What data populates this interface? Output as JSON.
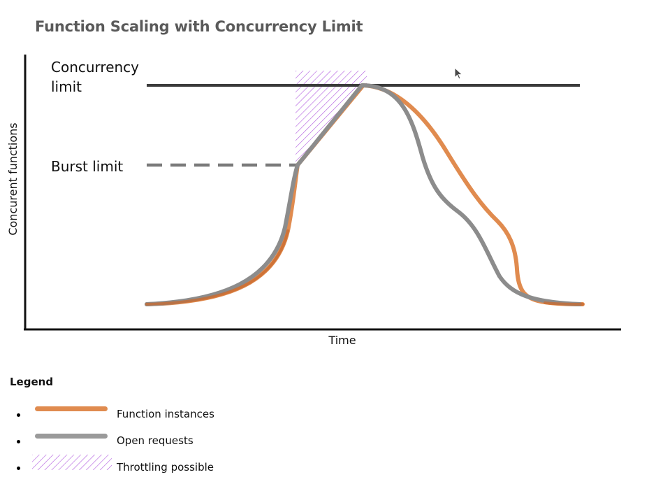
{
  "chart_data": {
    "type": "line",
    "title": "Function Scaling with Concurrency Limit",
    "xlabel": "Time",
    "ylabel": "Concurent functions",
    "reference_lines": [
      {
        "label": "Concurrency\nlimit",
        "label_lines": [
          "Concurrency",
          "limit"
        ],
        "style": "solid",
        "color": "#3b3b3b"
      },
      {
        "label": "Burst limit",
        "style": "dashed",
        "color": "#7a7a7a"
      }
    ],
    "series": [
      {
        "name": "Function instances",
        "color": "#e08b4f"
      },
      {
        "name": "Open requests",
        "color": "#8c8c8c"
      }
    ],
    "shaded_region": {
      "name": "Throttling possible",
      "color": "#b15be0",
      "pattern": "diagonal-hatch"
    },
    "legend": {
      "title": "Legend",
      "placement": "bottom-left",
      "items": [
        {
          "label": "Function instances",
          "kind": "line",
          "color": "#e08b4f"
        },
        {
          "label": "Open requests",
          "kind": "line",
          "color": "#9a9a9a"
        },
        {
          "label": "Throttling possible",
          "kind": "hatch",
          "color": "#b15be0"
        }
      ]
    },
    "grid": false
  }
}
